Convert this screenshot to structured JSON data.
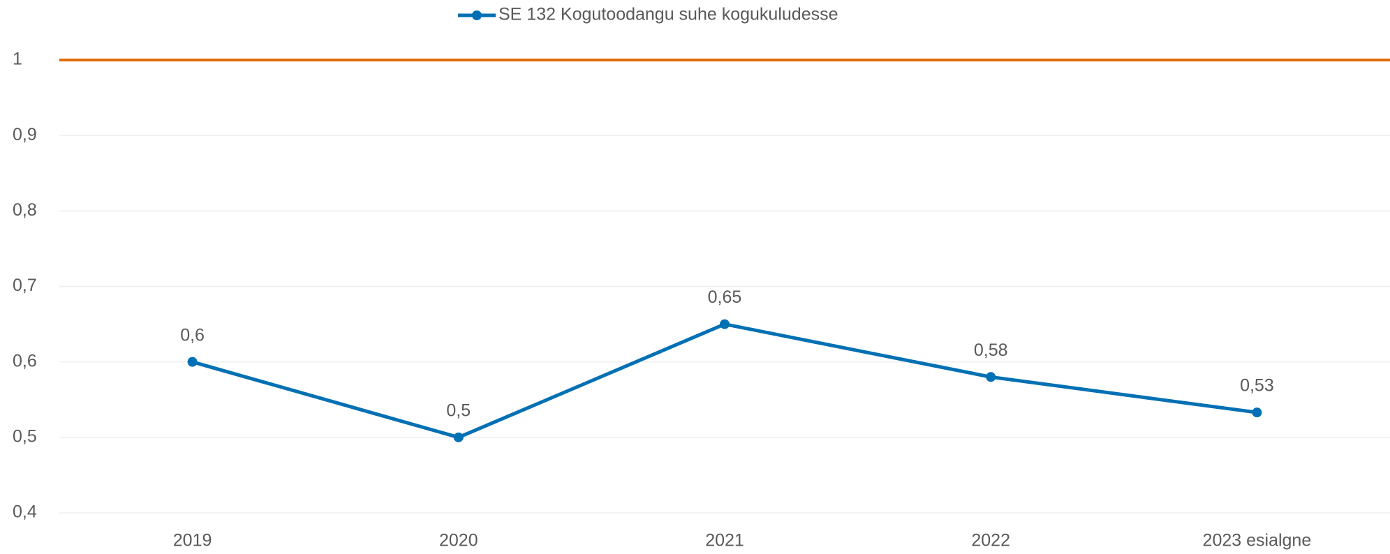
{
  "chart_data": {
    "type": "line",
    "categories": [
      "2019",
      "2020",
      "2021",
      "2022",
      "2023 esialgne"
    ],
    "series": [
      {
        "name": "SE 132 Kogutoodangu suhe kogukuludesse",
        "color": "#0070b4",
        "values": [
          0.6,
          0.5,
          0.65,
          0.58,
          0.533
        ],
        "value_labels": [
          "0,6",
          "0,5",
          "0,65",
          "0,58",
          "0,53"
        ]
      }
    ],
    "reference_line": {
      "value": 1,
      "color": "#e36c0a"
    },
    "ylim": [
      0.4,
      1
    ],
    "yticks": [
      {
        "value": 0.4,
        "label": "0,4"
      },
      {
        "value": 0.5,
        "label": "0,5"
      },
      {
        "value": 0.6,
        "label": "0,6"
      },
      {
        "value": 0.7,
        "label": "0,7"
      },
      {
        "value": 0.8,
        "label": "0,8"
      },
      {
        "value": 0.9,
        "label": "0,9"
      },
      1
    ],
    "grid": true,
    "legend": "top"
  }
}
